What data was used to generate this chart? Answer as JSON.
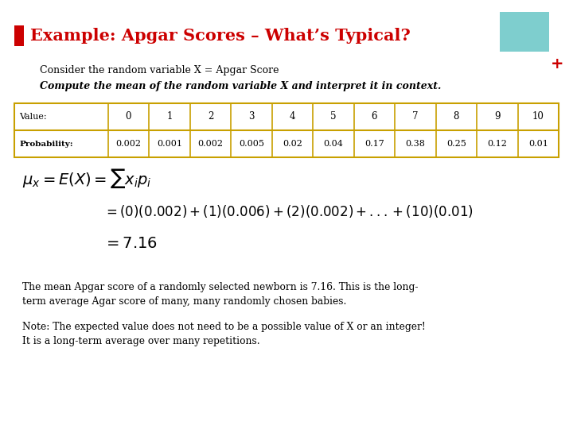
{
  "title": "Example: Apgar Scores – What’s Typical?",
  "title_color": "#cc0000",
  "title_fontsize": 15,
  "bg_color": "#ffffff",
  "subtitle1": "Consider the random variable X = Apgar Score",
  "subtitle2": "Compute the mean of the random variable X and interpret it in context.",
  "table_values": [
    "Value:",
    "0",
    "1",
    "2",
    "3",
    "4",
    "5",
    "6",
    "7",
    "8",
    "9",
    "10"
  ],
  "table_probs": [
    "Probability:",
    "0.002",
    "0.001",
    "0.002",
    "0.005",
    "0.02",
    "0.04",
    "0.17",
    "0.38",
    "0.25",
    "0.12",
    "0.01"
  ],
  "body_text1_line1": "The mean Apgar score of a randomly selected newborn is 7.16. This is the long-",
  "body_text1_line2": "term average Agar score of many, many randomly chosen babies.",
  "body_text2_line1": "Note: The expected value does not need to be a possible value of X or an integer!",
  "body_text2_line2": "It is a long-term average over many repetitions.",
  "corner_box_color": "#7ecece",
  "bullet_color": "#cc0000",
  "plus_color": "#cc0000",
  "table_border_color": "#c8a000",
  "col_widths_rel": [
    1.6,
    0.7,
    0.7,
    0.7,
    0.7,
    0.7,
    0.7,
    0.7,
    0.7,
    0.7,
    0.7,
    0.7
  ]
}
